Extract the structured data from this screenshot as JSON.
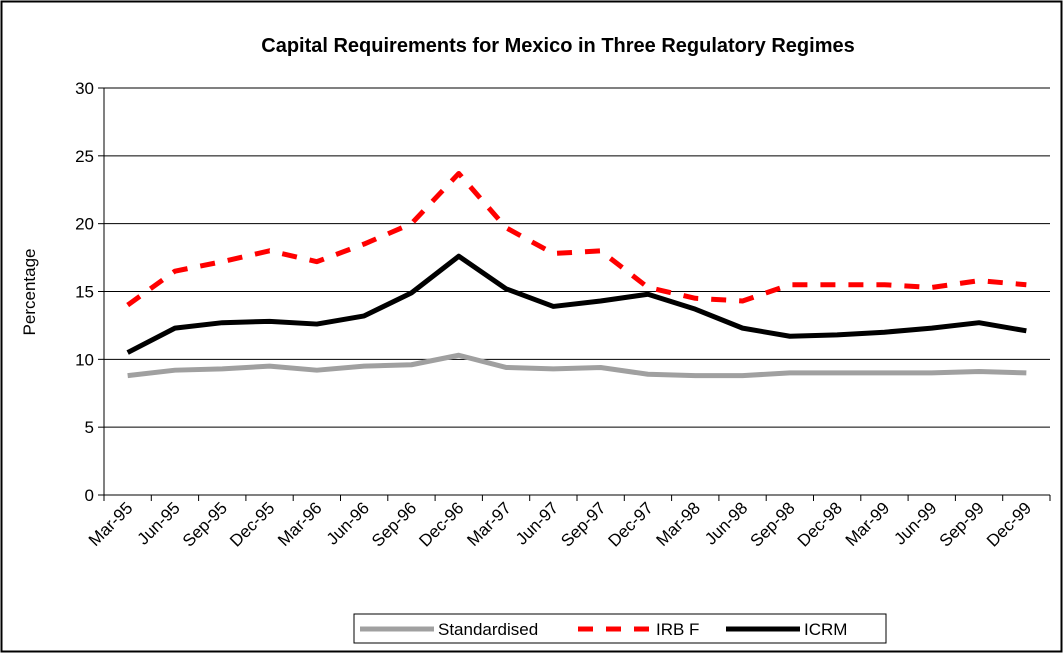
{
  "chart_data": {
    "type": "line",
    "title": "Capital Requirements for Mexico in Three Regulatory Regimes",
    "xlabel": "",
    "ylabel": "Percentage",
    "ylim": [
      0,
      30
    ],
    "yticks": [
      0,
      5,
      10,
      15,
      20,
      25,
      30
    ],
    "grid": true,
    "legend_position": "bottom",
    "categories": [
      "Mar-95",
      "Jun-95",
      "Sep-95",
      "Dec-95",
      "Mar-96",
      "Jun-96",
      "Sep-96",
      "Dec-96",
      "Mar-97",
      "Jun-97",
      "Sep-97",
      "Dec-97",
      "Mar-98",
      "Jun-98",
      "Sep-98",
      "Dec-98",
      "Mar-99",
      "Jun-99",
      "Sep-99",
      "Dec-99"
    ],
    "series": [
      {
        "name": "Standardised",
        "color": "#a0a0a0",
        "style": "solid",
        "values": [
          8.8,
          9.2,
          9.3,
          9.5,
          9.2,
          9.5,
          9.6,
          10.3,
          9.4,
          9.3,
          9.4,
          8.9,
          8.8,
          8.8,
          9.0,
          9.0,
          9.0,
          9.0,
          9.1,
          9.0
        ]
      },
      {
        "name": "IRB F",
        "color": "#ff0000",
        "style": "dashed",
        "values": [
          14.0,
          16.5,
          17.2,
          18.0,
          17.2,
          18.5,
          20.0,
          23.7,
          19.7,
          17.8,
          18.0,
          15.3,
          14.5,
          14.3,
          15.5,
          15.5,
          15.5,
          15.3,
          15.8,
          15.5
        ]
      },
      {
        "name": "ICRM",
        "color": "#000000",
        "style": "solid",
        "values": [
          10.5,
          12.3,
          12.7,
          12.8,
          12.6,
          13.2,
          14.9,
          17.6,
          15.2,
          13.9,
          14.3,
          14.8,
          13.7,
          12.3,
          11.7,
          11.8,
          12.0,
          12.3,
          12.7,
          12.1
        ]
      }
    ]
  }
}
